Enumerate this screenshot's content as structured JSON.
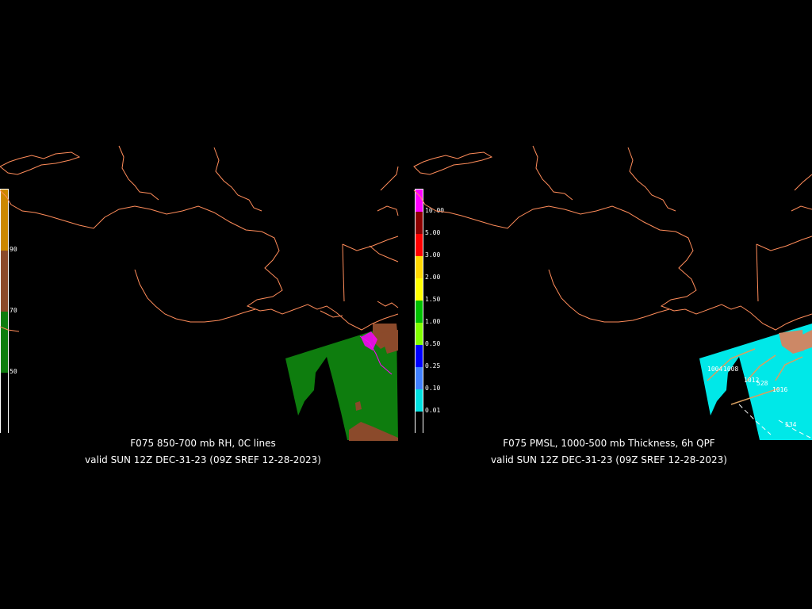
{
  "left_panel": {
    "title_line1": "F075 850-700 mb RH, 0C lines",
    "title_line2": "valid SUN 12Z DEC-31-23 (09Z SREF 12-28-2023)",
    "colorbar": {
      "colors": [
        "#cc8800",
        "#8b4a2b",
        "#0e7d0e",
        "#000000"
      ],
      "labels": [
        "90",
        "70",
        "50"
      ]
    }
  },
  "right_panel": {
    "title_line1": "F075 PMSL, 1000-500 mb Thickness, 6h QPF",
    "title_line2": "valid SUN 12Z DEC-31-23 (09Z SREF 12-28-2023)",
    "colorbar": {
      "colors": [
        "#ff00ff",
        "#8b0000",
        "#ff0000",
        "#ffd700",
        "#ffff00",
        "#00c000",
        "#80ff00",
        "#0000ff",
        "#4080ff",
        "#00e0e0",
        "#000000"
      ],
      "labels": [
        "10.00",
        "5.00",
        "3.00",
        "2.00",
        "1.50",
        "1.00",
        "0.50",
        "0.25",
        "0.10",
        "0.01"
      ]
    },
    "contour_labels": [
      "1004",
      "1008",
      "1012",
      "528",
      "1016",
      "534"
    ]
  },
  "colors": {
    "coastline": "#ff8c5a",
    "rh_green": "#0e7d0e",
    "rh_brown": "#8b4a2b",
    "qpf_cyan": "#00e8e8",
    "thickness": "#d8a060"
  }
}
